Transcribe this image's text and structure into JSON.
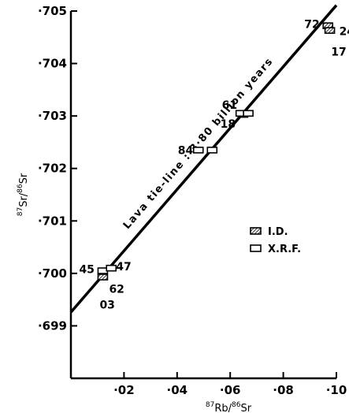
{
  "chart_data": {
    "type": "scatter",
    "xlabel": {
      "iso1": "87",
      "el1": "Rb",
      "sep": "/",
      "iso2": "86",
      "el2": "Sr"
    },
    "ylabel": {
      "iso1": "87",
      "el1": "Sr",
      "sep": "/",
      "iso2": "86",
      "el2": "Sr"
    },
    "xlim": [
      0,
      0.1
    ],
    "ylim": [
      0.698,
      0.705
    ],
    "x_ticks": [
      0.02,
      0.04,
      0.06,
      0.08,
      0.1
    ],
    "x_tick_labels": [
      "·02",
      "·04",
      "·06",
      "·08",
      "·10"
    ],
    "y_ticks": [
      0.699,
      0.7,
      0.701,
      0.702,
      0.703,
      0.704,
      0.705
    ],
    "y_tick_labels": [
      "·699",
      "·700",
      "·701",
      "·702",
      "·703",
      "·704",
      "·705"
    ],
    "fit_line": {
      "label": "Lava tie-line : 3·80 billion years",
      "points": [
        [
          0.0,
          0.69926
        ],
        [
          0.1,
          0.70511
        ]
      ]
    },
    "legend": [
      {
        "name": "I.D.",
        "style": "hatched"
      },
      {
        "name": "X.R.F.",
        "style": "open"
      }
    ],
    "legend_position": "center-right",
    "grid": false,
    "series": [
      {
        "name": "I.D.",
        "style": "hatched",
        "points": [
          {
            "x": 0.012,
            "y": 0.69993
          },
          {
            "x": 0.0648,
            "y": 0.70303
          },
          {
            "x": 0.0968,
            "y": 0.70472
          },
          {
            "x": 0.0975,
            "y": 0.70463
          }
        ]
      },
      {
        "name": "X.R.F.",
        "style": "open",
        "points": [
          {
            "x": 0.012,
            "y": 0.70005
          },
          {
            "x": 0.0152,
            "y": 0.7001
          },
          {
            "x": 0.048,
            "y": 0.70235
          },
          {
            "x": 0.0532,
            "y": 0.70235
          },
          {
            "x": 0.064,
            "y": 0.70305
          },
          {
            "x": 0.0668,
            "y": 0.70305
          }
        ]
      }
    ],
    "point_labels": [
      {
        "text": "45",
        "x": 0.012,
        "y": 0.70005,
        "dx": -30,
        "dy": 3
      },
      {
        "text": "47",
        "x": 0.0152,
        "y": 0.7001,
        "dx": 6,
        "dy": 3
      },
      {
        "text": "62",
        "x": 0.012,
        "y": 0.69993,
        "dx": 8,
        "dy": 20
      },
      {
        "text": "03",
        "x": 0.012,
        "y": 0.69993,
        "dx": -4,
        "dy": 40
      },
      {
        "text": "84",
        "x": 0.048,
        "y": 0.70235,
        "dx": -26,
        "dy": 5
      },
      {
        "text": "61",
        "x": 0.064,
        "y": 0.70305,
        "dx": -24,
        "dy": -6
      },
      {
        "text": "18",
        "x": 0.064,
        "y": 0.70305,
        "dx": -26,
        "dy": 18
      },
      {
        "text": "72",
        "x": 0.0968,
        "y": 0.70472,
        "dx": -30,
        "dy": 3
      },
      {
        "text": "24",
        "x": 0.0975,
        "y": 0.70463,
        "dx": 12,
        "dy": 6
      },
      {
        "text": "17",
        "x": 0.0968,
        "y": 0.70463,
        "dx": 4,
        "dy": 32
      }
    ]
  }
}
